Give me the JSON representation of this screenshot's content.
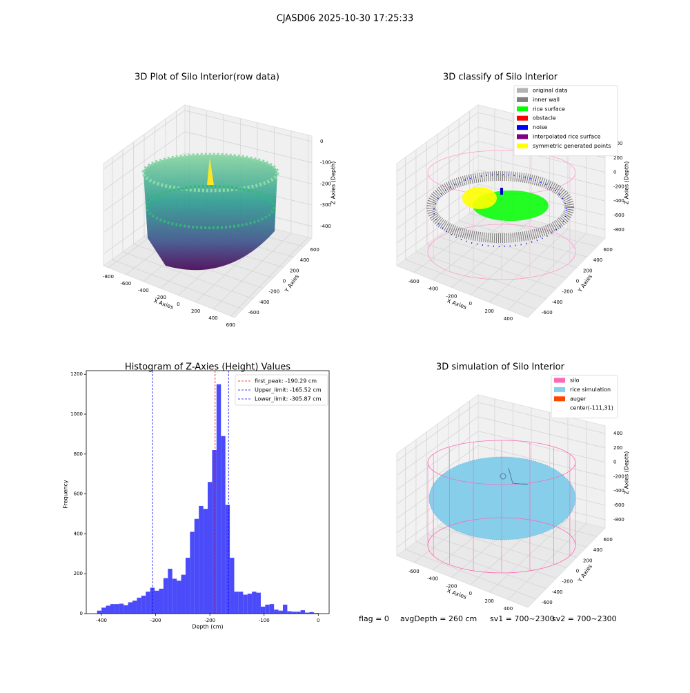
{
  "title": "CJASD06 2025-10-30 17:25:33",
  "annotations": [
    "flag = 0",
    "avgDepth = 260 cm",
    "sv1 = 700~2300",
    "sv2 = 700~2300"
  ],
  "chart_data": [
    {
      "type": "scatter3d",
      "title": "3D Plot of Silo Interior(row data)",
      "x_label": "X Axies",
      "y_label": "Y Axies",
      "z_label": "Z Axies (Depth)",
      "xlim": [
        -855,
        645
      ],
      "xticks": [
        -800,
        -600,
        -400,
        -200,
        0,
        200,
        400,
        600
      ],
      "ylim": [
        -760,
        760
      ],
      "yticks": [
        -600,
        -400,
        -200,
        0,
        200,
        400,
        600
      ],
      "zlim": [
        -456,
        26
      ],
      "zticks": [
        -400,
        -300,
        -200,
        -100,
        0
      ],
      "grid": true
    },
    {
      "type": "classify3d",
      "title": "3D classify of Silo Interior",
      "x_label": "X Axies",
      "y_label": "Y Axies",
      "z_label": "Z Axies (Depth)",
      "xlim": [
        -781,
        608
      ],
      "xticks": [
        -600,
        -400,
        -200,
        0,
        200,
        400
      ],
      "ylim": [
        -760,
        760
      ],
      "yticks": [
        -600,
        -400,
        -200,
        0,
        200,
        400,
        600
      ],
      "zlim": [
        -917,
        506
      ],
      "zticks": [
        -800,
        -600,
        -400,
        -200,
        0,
        200,
        400
      ],
      "grid": true,
      "legend": [
        {
          "name": "original data",
          "color": "#b3b3b3"
        },
        {
          "name": "inner wall",
          "color": "#808080"
        },
        {
          "name": "rice surface",
          "color": "#00ff00"
        },
        {
          "name": "obstacle",
          "color": "#ff0000"
        },
        {
          "name": "noise",
          "color": "#0000ff"
        },
        {
          "name": "interpolated rice surface",
          "color": "#800080"
        },
        {
          "name": "symmetric generated points",
          "color": "#ffff00"
        }
      ]
    },
    {
      "type": "histogram",
      "title": "Histogram of Z-Axies (Height) Values",
      "x_label": "Depth (cm)",
      "y_label": "Frequency",
      "color": "#4b4bfa",
      "bins": [
        -408,
        -399.84,
        -391.68,
        -383.52,
        -375.36,
        -367.2,
        -359.04,
        -350.88,
        -342.72,
        -334.56,
        -326.4,
        -318.24,
        -310.08,
        -301.92,
        -293.76,
        -285.6,
        -277.44,
        -269.28,
        -261.12,
        -252.96,
        -244.8,
        -236.64,
        -228.48,
        -220.32,
        -212.16,
        -204,
        -195.84,
        -187.68,
        -179.52,
        -171.36,
        -163.2,
        -155.04,
        -146.88,
        -138.72,
        -130.56,
        -122.4,
        -114.24,
        -106.08,
        -97.92,
        -89.76,
        -81.6,
        -73.44,
        -65.28,
        -57.12,
        -48.96,
        -40.8,
        -32.64,
        -24.48,
        -16.32,
        -8.16,
        0
      ],
      "values": [
        15,
        30,
        40,
        48,
        48,
        50,
        42,
        57,
        65,
        80,
        90,
        110,
        130,
        115,
        125,
        178,
        225,
        175,
        165,
        195,
        280,
        410,
        475,
        540,
        525,
        660,
        820,
        1150,
        890,
        545,
        280,
        110,
        110,
        95,
        100,
        110,
        105,
        35,
        45,
        48,
        20,
        15,
        45,
        12,
        10,
        10,
        17,
        5,
        8,
        3
      ],
      "xlim": [
        -428,
        20
      ],
      "xticks": [
        -400,
        -300,
        -200,
        -100,
        0
      ],
      "ylim": [
        0,
        1218
      ],
      "yticks": [
        0,
        200,
        400,
        600,
        800,
        1000,
        1200
      ],
      "vlines": [
        {
          "value": -190.29,
          "label": "first_peak: -190.29 cm",
          "color": "#ff0000"
        },
        {
          "value": -165.52,
          "label": "Upper_limit: -165.52 cm",
          "color": "#0000ff"
        },
        {
          "value": -305.87,
          "label": "Lower_limit: -305.87 cm",
          "color": "#0000ff"
        }
      ]
    },
    {
      "type": "simulation3d",
      "title": "3D simulation of Silo Interior",
      "x_label": "X Axies",
      "y_label": "Y Axies",
      "z_label": "Z Axies (Depth)",
      "xlim": [
        -781,
        608
      ],
      "xticks": [
        -600,
        -400,
        -200,
        0,
        200,
        400
      ],
      "ylim": [
        -760,
        760
      ],
      "yticks": [
        -600,
        -400,
        -200,
        0,
        200,
        400,
        600
      ],
      "zlim": [
        -917,
        506
      ],
      "zticks": [
        -800,
        -600,
        -400,
        -200,
        0,
        200,
        400
      ],
      "grid": true,
      "legend": [
        {
          "name": "silo",
          "color": "#ff69b4"
        },
        {
          "name": "rice simulation",
          "color": "#87ceeb"
        },
        {
          "name": "auger",
          "color": "#ff4500"
        },
        {
          "name": "center(-111,31)"
        }
      ]
    }
  ]
}
